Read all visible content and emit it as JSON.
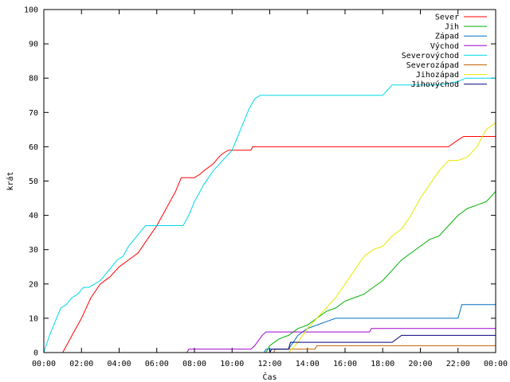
{
  "chart_data": {
    "type": "line",
    "title": "",
    "xlabel": "Čas",
    "ylabel": "krát",
    "xlim": [
      0,
      24
    ],
    "ylim": [
      0,
      100
    ],
    "x_ticks": [
      {
        "v": 0,
        "label": "00:00"
      },
      {
        "v": 2,
        "label": "02:00"
      },
      {
        "v": 4,
        "label": "04:00"
      },
      {
        "v": 6,
        "label": "06:00"
      },
      {
        "v": 8,
        "label": "08:00"
      },
      {
        "v": 10,
        "label": "10:00"
      },
      {
        "v": 12,
        "label": "12:00"
      },
      {
        "v": 14,
        "label": "14:00"
      },
      {
        "v": 16,
        "label": "16:00"
      },
      {
        "v": 18,
        "label": "18:00"
      },
      {
        "v": 20,
        "label": "20:00"
      },
      {
        "v": 22,
        "label": "22:00"
      },
      {
        "v": 24,
        "label": "00:00"
      }
    ],
    "y_ticks": [
      0,
      10,
      20,
      30,
      40,
      50,
      60,
      70,
      80,
      90,
      100
    ],
    "grid": false,
    "legend_position": "top-right",
    "series": [
      {
        "name": "Sever",
        "color": "#ff0000",
        "x": [
          0,
          1.0,
          1.1,
          1.5,
          2.0,
          2.5,
          3.0,
          3.5,
          4.0,
          4.5,
          5.0,
          5.5,
          6.0,
          6.5,
          7.0,
          7.3,
          7.5,
          8.0,
          8.3,
          8.5,
          9.0,
          9.3,
          9.5,
          9.8,
          10.0,
          10.5,
          11.0,
          11.1,
          12.0,
          14.0,
          16.0,
          18.0,
          20.0,
          21.5,
          22.0,
          22.3,
          23.0,
          24.0
        ],
        "y": [
          0,
          0,
          1,
          5,
          10,
          16,
          20,
          22,
          25,
          27,
          29,
          33,
          37,
          42,
          47,
          51,
          51,
          51,
          52,
          53,
          55,
          57,
          58,
          59,
          59,
          59,
          59,
          60,
          60,
          60,
          60,
          60,
          60,
          60,
          62,
          63,
          63,
          63
        ]
      },
      {
        "name": "Jih",
        "color": "#00b000",
        "x": [
          0,
          11.8,
          12.0,
          12.5,
          13.0,
          13.5,
          14.0,
          14.5,
          15.0,
          15.5,
          16.0,
          16.5,
          17.0,
          17.5,
          18.0,
          18.5,
          19.0,
          19.5,
          20.0,
          20.5,
          21.0,
          21.5,
          22.0,
          22.5,
          23.0,
          23.5,
          24.0
        ],
        "y": [
          0,
          0,
          2,
          4,
          5,
          7,
          8,
          10,
          12,
          13,
          15,
          16,
          17,
          19,
          21,
          24,
          27,
          29,
          31,
          33,
          34,
          37,
          40,
          42,
          43,
          44,
          47
        ]
      },
      {
        "name": "Západ",
        "color": "#0070c0",
        "x": [
          0,
          11.7,
          11.8,
          13.0,
          13.5,
          14.0,
          14.5,
          15.0,
          15.5,
          16.0,
          18.0,
          20.0,
          21.0,
          22.0,
          22.2,
          23.0,
          24.0
        ],
        "y": [
          0,
          0,
          1,
          1,
          5,
          7,
          8,
          9,
          10,
          10,
          10,
          10,
          10,
          10,
          14,
          14,
          14
        ]
      },
      {
        "name": "Východ",
        "color": "#a000d0",
        "x": [
          0,
          7.6,
          7.7,
          10.0,
          11.0,
          11.2,
          11.6,
          11.8,
          12.0,
          14.0,
          16.0,
          17.3,
          17.4,
          20.0,
          22.0,
          24.0
        ],
        "y": [
          0,
          0,
          1,
          1,
          1,
          2,
          5,
          6,
          6,
          6,
          6,
          6,
          7,
          7,
          7,
          7
        ]
      },
      {
        "name": "Severovýchod",
        "color": "#00d8e8",
        "x": [
          0,
          0.3,
          0.6,
          0.9,
          1.2,
          1.5,
          1.8,
          2.1,
          2.4,
          2.7,
          3.0,
          3.3,
          3.6,
          3.9,
          4.2,
          4.5,
          4.8,
          5.1,
          5.4,
          5.7,
          6.0,
          6.5,
          7.0,
          7.4,
          7.7,
          8.0,
          8.5,
          9.0,
          9.5,
          10.0,
          10.3,
          10.6,
          10.9,
          11.2,
          11.5,
          12.0,
          14.0,
          16.0,
          18.0,
          18.5,
          19.5,
          20.0,
          21.0,
          22.0,
          22.4,
          23.0,
          24.0
        ],
        "y": [
          0,
          5,
          9,
          13,
          14,
          16,
          17,
          19,
          19,
          20,
          21,
          23,
          25,
          27,
          28,
          31,
          33,
          35,
          37,
          37,
          37,
          37,
          37,
          37,
          40,
          44,
          49,
          53,
          56,
          59,
          63,
          67,
          71,
          74,
          75,
          75,
          75,
          75,
          75,
          78,
          78,
          78,
          78,
          79,
          80,
          80,
          80
        ]
      },
      {
        "name": "Severozápad",
        "color": "#c06000",
        "x": [
          0,
          12.2,
          12.3,
          14.4,
          14.5,
          16.0,
          20.0,
          24.0
        ],
        "y": [
          0,
          0,
          1,
          1,
          2,
          2,
          2,
          2
        ]
      },
      {
        "name": "Jihozápad",
        "color": "#e8e800",
        "x": [
          0,
          13.0,
          13.5,
          14.0,
          14.5,
          15.0,
          15.5,
          16.0,
          16.5,
          17.0,
          17.5,
          18.0,
          18.5,
          19.0,
          19.5,
          20.0,
          20.5,
          21.0,
          21.5,
          22.0,
          22.5,
          23.0,
          23.5,
          24.0
        ],
        "y": [
          0,
          0,
          3,
          7,
          10,
          13,
          16,
          20,
          24,
          28,
          30,
          31,
          34,
          36,
          40,
          45,
          49,
          53,
          56,
          56,
          57,
          60,
          65,
          67
        ]
      },
      {
        "name": "Jihovýchod",
        "color": "#000080",
        "x": [
          0,
          12.0,
          12.1,
          13.0,
          13.1,
          18.5,
          19.0,
          20.0,
          24.0
        ],
        "y": [
          0,
          0,
          1,
          1,
          3,
          3,
          5,
          5,
          5
        ]
      }
    ]
  }
}
